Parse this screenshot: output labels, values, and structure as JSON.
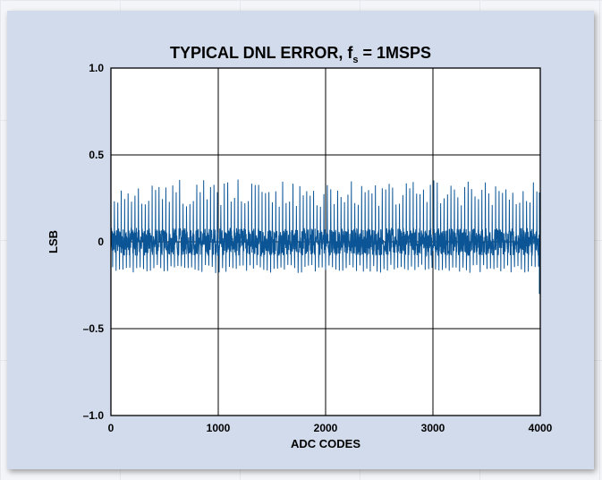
{
  "colors": {
    "panel_bg": "#d1dbec",
    "plot_bg": "#ffffff",
    "trace": "#0b5596",
    "grid": "#000000"
  },
  "chart_data": {
    "type": "line",
    "title": "TYPICAL DNL ERROR, f",
    "title_subscript": "s",
    "title_suffix": " = 1MSPS",
    "xlabel": "ADC CODES",
    "ylabel": "LSB",
    "xlim": [
      0,
      4000
    ],
    "ylim": [
      -1.0,
      1.0
    ],
    "x_ticks": [
      0,
      1000,
      2000,
      3000,
      4000
    ],
    "x_tick_labels": [
      "0",
      "1000",
      "2000",
      "3000",
      "4000"
    ],
    "y_ticks": [
      1.0,
      0.5,
      0,
      -0.5,
      -1.0
    ],
    "y_tick_labels": [
      "1.0",
      "0.5",
      "0",
      "–0.5",
      "–1.0"
    ],
    "grid": true,
    "series": [
      {
        "description_free": true,
        "x_range": [
          0,
          4095
        ],
        "noise_band": [
          -0.08,
          0.08
        ],
        "positive_spike_range": [
          0.2,
          0.36
        ],
        "negative_spike_range": [
          -0.18,
          -0.12
        ],
        "spike_spacing_codes": 32,
        "end_value": -0.3
      }
    ]
  }
}
